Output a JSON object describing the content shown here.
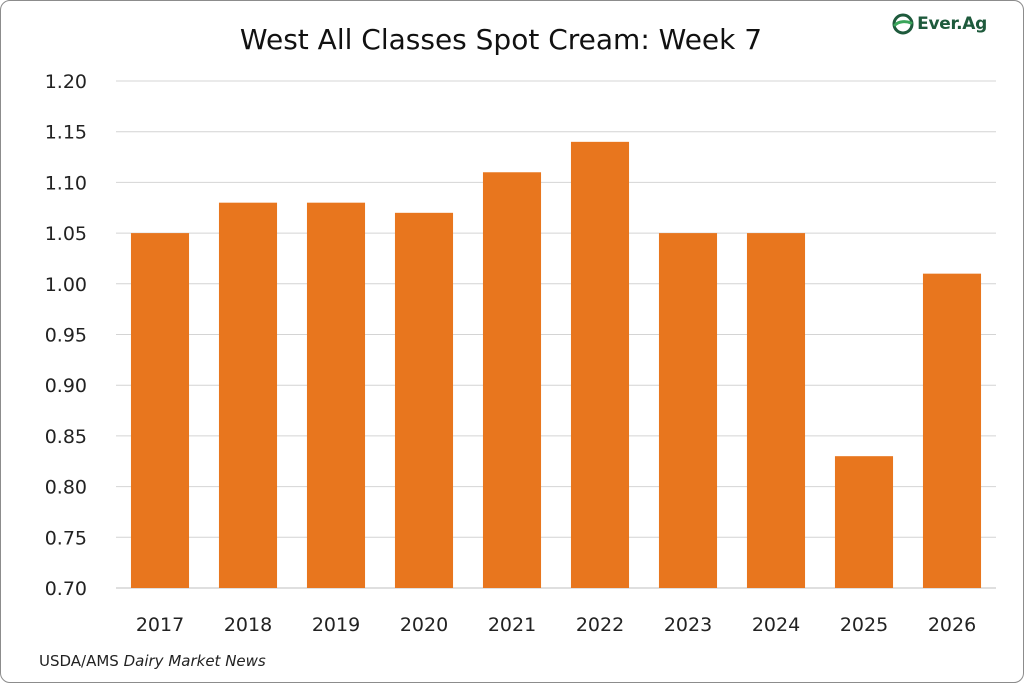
{
  "logo": {
    "text": "Ever.Ag",
    "icon": "ever-ag-leaf-icon",
    "color": "#1e5a3c",
    "accent": "#3aa55a"
  },
  "source": {
    "prefix": "USDA/AMS ",
    "italic": "Dairy Market News"
  },
  "chart_data": {
    "type": "bar",
    "title": "West All Classes Spot Cream: Week 7",
    "xlabel": "",
    "ylabel": "",
    "categories": [
      "2017",
      "2018",
      "2019",
      "2020",
      "2021",
      "2022",
      "2023",
      "2024",
      "2025",
      "2026"
    ],
    "values": [
      1.05,
      1.08,
      1.08,
      1.07,
      1.11,
      1.14,
      1.05,
      1.05,
      0.83,
      1.01
    ],
    "ylim": [
      0.7,
      1.2
    ],
    "yticks": [
      "0.70",
      "0.75",
      "0.80",
      "0.85",
      "0.90",
      "0.95",
      "1.00",
      "1.05",
      "1.10",
      "1.15",
      "1.20"
    ],
    "grid": true,
    "legend": "none",
    "bar_color": "#e8761e",
    "grid_color": "#d4d4d4"
  }
}
